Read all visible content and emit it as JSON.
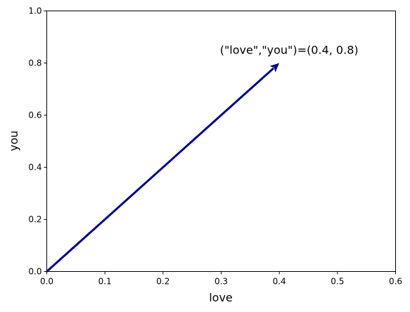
{
  "chart_data": {
    "type": "vector",
    "xlabel": "love",
    "ylabel": "you",
    "xlim": [
      0,
      0.6
    ],
    "ylim": [
      0,
      1.0
    ],
    "xticks": [
      "0.0",
      "0.1",
      "0.2",
      "0.3",
      "0.4",
      "0.5",
      "0.6"
    ],
    "yticks": [
      "0.0",
      "0.2",
      "0.4",
      "0.6",
      "0.8",
      "1.0"
    ],
    "vector": {
      "x0": 0,
      "y0": 0,
      "x1": 0.4,
      "y1": 0.8,
      "color": "#000080"
    },
    "annotation": {
      "text": "(\"love\",\"you\")=(0.4, 0.8)"
    },
    "grid": false,
    "legend": "none"
  }
}
